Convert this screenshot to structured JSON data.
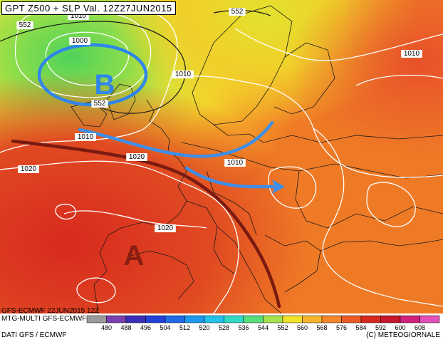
{
  "title": "GPT Z500 + SLP Val. 12Z27JUN2015",
  "run_label": "GFS-ECMWF 22JUN2015 12Z",
  "model_label": "MTG-MULTI GFS-ECMWF",
  "source_label": "DATI GFS / ECMWF",
  "copyright": "(C) METEOGIORNALE",
  "low_label": "B",
  "high_label": "A",
  "isobar_labels": [
    "1010",
    "1000",
    "552",
    "1010",
    "1010",
    "1020",
    "1010",
    "1020",
    "1020",
    "1010",
    "552",
    "552"
  ],
  "scale": {
    "values": [
      "480",
      "488",
      "496",
      "504",
      "512",
      "520",
      "528",
      "536",
      "544",
      "552",
      "560",
      "568",
      "576",
      "584",
      "592",
      "600",
      "608"
    ],
    "colors": [
      "#9b9b9b",
      "#7b3fb0",
      "#3a2fb8",
      "#2340d9",
      "#1f6ae6",
      "#1e98ee",
      "#22c2ea",
      "#2fd9c4",
      "#55de7a",
      "#a3e24e",
      "#f2e22a",
      "#f6b52c",
      "#f5862a",
      "#ec5a24",
      "#d7281e",
      "#c5162d",
      "#d0207c",
      "#e24fb6"
    ]
  },
  "colors": {
    "low_circle": "#2f86e8",
    "arrow": "#3f8fe8",
    "ridge": "#7a1a10",
    "isobar": "#ffffff"
  }
}
